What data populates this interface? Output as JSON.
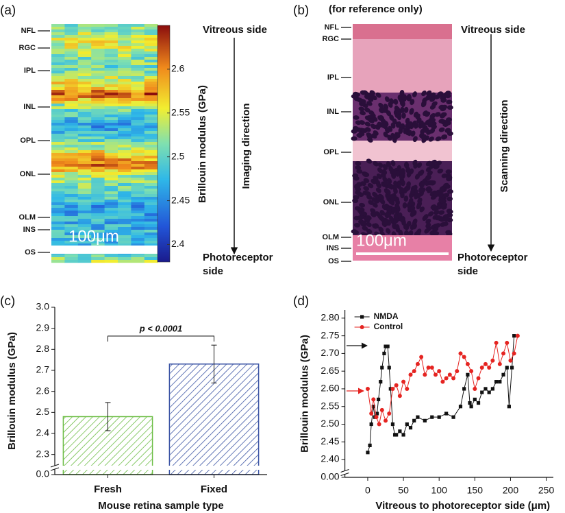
{
  "panel_a": {
    "label": "(a)",
    "layers": [
      "NFL",
      "RGC",
      "IPL",
      "INL",
      "OPL",
      "ONL",
      "OLM",
      "INS",
      "OS"
    ],
    "scale_bar": "100μm",
    "top_label": "Vitreous side",
    "direction": "Imaging direction",
    "bottom_label": [
      "Photoreceptor",
      "side"
    ],
    "colorbar": {
      "title": "Brillouin modulus (GPa)",
      "lim": [
        2.38,
        2.65
      ],
      "ticks": [
        2.4,
        2.45,
        2.5,
        2.55,
        2.6
      ]
    }
  },
  "panel_b": {
    "label": "(b)",
    "note": "(for reference only)",
    "layers": [
      "NFL",
      "RGC",
      "IPL",
      "INL",
      "OPL",
      "ONL",
      "OLM",
      "INS",
      "OS"
    ],
    "scale_bar": "100μm",
    "top_label": "Vitreous side",
    "direction": "Scanning direction",
    "bottom_label": [
      "Photoreceptor",
      "side"
    ]
  },
  "chart_data": [
    {
      "type": "bar",
      "panel_label": "(c)",
      "categories": [
        "Fresh",
        "Fixed"
      ],
      "values": [
        2.48,
        2.73
      ],
      "errors": [
        0.067,
        0.09
      ],
      "colors": [
        "#6cbd45",
        "#3c55a5"
      ],
      "hatch": true,
      "ylim": [
        2.25,
        3.0
      ],
      "yticks": [
        {
          "value": 0,
          "label": "0.0"
        },
        2.3,
        2.4,
        2.5,
        2.6,
        2.7,
        2.8,
        2.9,
        {
          "value": 3,
          "label": "3.0"
        }
      ],
      "xlabel": "Mouse retina sample type",
      "ylabel": "Brillouin modulus (GPa)",
      "annotation": "p < 0.0001"
    },
    {
      "type": "line",
      "panel_label": "(d)",
      "legend": "upper left",
      "xlim": [
        -32,
        260
      ],
      "ylim": [
        2.37,
        2.823
      ],
      "xticks": [
        0,
        50,
        100,
        150,
        200,
        250
      ],
      "yticks": [
        {
          "value": 0,
          "label": "0.00"
        },
        {
          "value": 2.4,
          "label": "2.40"
        },
        2.45,
        {
          "value": 2.5,
          "label": "2.50"
        },
        2.55,
        {
          "value": 2.6,
          "label": "2.60"
        },
        2.65,
        {
          "value": 2.7,
          "label": "2.70"
        },
        2.75,
        {
          "value": 2.8,
          "label": "2.80"
        }
      ],
      "xlabel": "Vitreous to photoreceptor side (μm)",
      "ylabel": "Brillouin modulus (GPa)",
      "series": [
        {
          "name": "NMDA",
          "color": "#111111",
          "marker": "square",
          "x": [
            0,
            3,
            5,
            8,
            10,
            13,
            15,
            18,
            20,
            23,
            25,
            28,
            30,
            32,
            35,
            38,
            40,
            45,
            50,
            55,
            60,
            65,
            70,
            80,
            90,
            100,
            110,
            120,
            130,
            135,
            140,
            143,
            145,
            150,
            155,
            160,
            165,
            170,
            175,
            180,
            185,
            190,
            195,
            198,
            202,
            205
          ],
          "values": [
            2.42,
            2.44,
            2.5,
            2.55,
            2.52,
            2.53,
            2.57,
            2.62,
            2.66,
            2.7,
            2.72,
            2.72,
            2.66,
            2.6,
            2.5,
            2.47,
            2.47,
            2.48,
            2.47,
            2.5,
            2.49,
            2.51,
            2.52,
            2.51,
            2.52,
            2.52,
            2.53,
            2.52,
            2.55,
            2.6,
            2.64,
            2.56,
            2.55,
            2.57,
            2.56,
            2.59,
            2.6,
            2.59,
            2.6,
            2.62,
            2.62,
            2.64,
            2.66,
            2.55,
            2.66,
            2.75
          ]
        },
        {
          "name": "Control",
          "color": "#e52421",
          "marker": "circle",
          "x": [
            0,
            5,
            8,
            12,
            16,
            20,
            25,
            30,
            35,
            40,
            45,
            50,
            55,
            60,
            65,
            70,
            75,
            80,
            85,
            90,
            95,
            100,
            105,
            110,
            115,
            120,
            125,
            130,
            135,
            140,
            145,
            150,
            155,
            160,
            165,
            170,
            175,
            180,
            185,
            190,
            195,
            200,
            205,
            210
          ],
          "values": [
            2.6,
            2.53,
            2.57,
            2.52,
            2.5,
            2.54,
            2.51,
            2.53,
            2.6,
            2.61,
            2.58,
            2.62,
            2.6,
            2.64,
            2.65,
            2.67,
            2.69,
            2.64,
            2.66,
            2.66,
            2.64,
            2.65,
            2.62,
            2.63,
            2.64,
            2.63,
            2.65,
            2.7,
            2.69,
            2.67,
            2.65,
            2.6,
            2.63,
            2.66,
            2.67,
            2.66,
            2.68,
            2.73,
            2.67,
            2.7,
            2.73,
            2.68,
            2.7,
            2.75
          ]
        }
      ]
    }
  ]
}
